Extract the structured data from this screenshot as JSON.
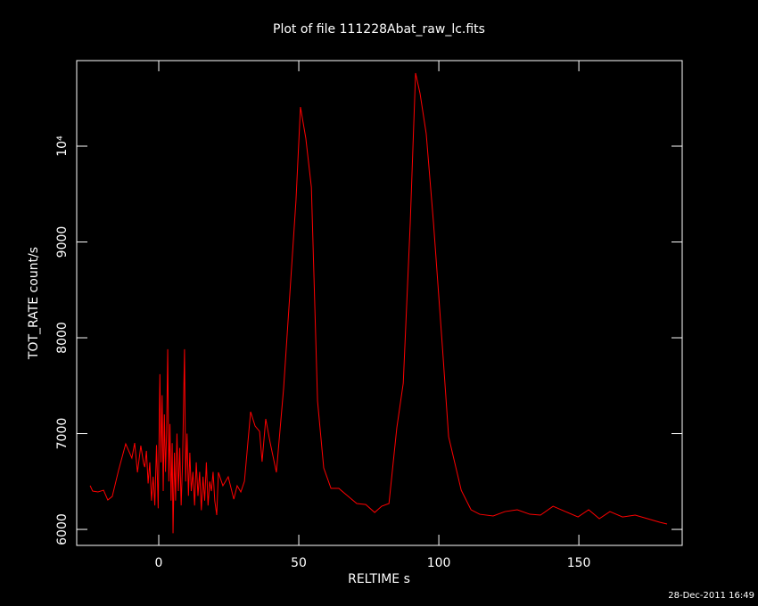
{
  "chart_data": {
    "type": "line",
    "title": "Plot of file 111228Abat_raw_lc.fits",
    "xlabel": "RELTIME  s",
    "ylabel": "TOT_RATE  count/s",
    "footer": "28-Dec-2011 16:49",
    "xlim": [
      -29.3,
      186.9
    ],
    "ylim": [
      5833,
      10893
    ],
    "xticks": [
      0,
      50,
      100,
      150
    ],
    "yticks": [
      6000,
      7000,
      8000,
      9000,
      {
        "value": 10000,
        "label": "10⁴"
      }
    ],
    "axis_color": "#ffffff",
    "series": [
      {
        "name": "TOT_RATE",
        "color": "#ff0000",
        "x": [
          -24.5,
          -23.6,
          -21.7,
          -19.7,
          -18.2,
          -16.6,
          -14.3,
          -11.8,
          -9.6,
          -8.6,
          -7.6,
          -6.4,
          -5.4,
          -5.0,
          -4.4,
          -3.8,
          -3.2,
          -2.6,
          -2.0,
          -1.4,
          -0.8,
          -0.2,
          0.4,
          0.8,
          1.2,
          1.6,
          2.0,
          2.4,
          2.8,
          3.2,
          3.6,
          4.0,
          4.4,
          4.8,
          5.1,
          5.6,
          6.0,
          6.5,
          7.0,
          7.5,
          8.0,
          8.5,
          9.2,
          9.6,
          10.1,
          10.6,
          11.1,
          11.6,
          12.2,
          12.8,
          13.4,
          14.0,
          14.6,
          15.2,
          15.8,
          16.4,
          17.0,
          17.6,
          18.2,
          18.8,
          19.4,
          20.0,
          20.7,
          21.3,
          22.9,
          24.8,
          26.8,
          28.0,
          29.3,
          30.6,
          32.8,
          34.4,
          36.0,
          36.9,
          38.2,
          39.8,
          42.0,
          44.6,
          46.8,
          49.0,
          50.6,
          52.5,
          54.5,
          56.7,
          58.9,
          61.5,
          64.3,
          66.9,
          70.7,
          73.9,
          77.1,
          79.6,
          82.2,
          85.0,
          87.3,
          89.8,
          91.7,
          93.3,
          95.5,
          98.1,
          101.3,
          103.5,
          108.0,
          111.5,
          114.6,
          119.4,
          123.6,
          128.0,
          132.5,
          136.3,
          140.8,
          145.2,
          149.7,
          153.5,
          157.3,
          161.1,
          165.6,
          170.1,
          174.5,
          179.0,
          181.5
        ],
        "values": [
          6456,
          6400,
          6391,
          6409,
          6307,
          6344,
          6623,
          6893,
          6744,
          6902,
          6595,
          6874,
          6688,
          6650,
          6820,
          6480,
          6700,
          6300,
          6550,
          6250,
          6880,
          6220,
          7620,
          6700,
          7400,
          6400,
          7200,
          6600,
          7000,
          7880,
          6500,
          7100,
          6300,
          6900,
          5960,
          6800,
          6300,
          7000,
          6400,
          6850,
          6250,
          6700,
          7880,
          6500,
          7000,
          6350,
          6800,
          6400,
          6600,
          6250,
          6700,
          6350,
          6600,
          6200,
          6550,
          6300,
          6700,
          6250,
          6500,
          6400,
          6600,
          6300,
          6150,
          6595,
          6456,
          6549,
          6316,
          6456,
          6391,
          6502,
          7228,
          7079,
          7023,
          6707,
          7153,
          6902,
          6595,
          7479,
          8456,
          9433,
          10409,
          10084,
          9572,
          7340,
          6642,
          6428,
          6428,
          6363,
          6270,
          6260,
          6177,
          6242,
          6270,
          7060,
          7526,
          9200,
          10763,
          10549,
          10130,
          9200,
          7898,
          6967,
          6409,
          6205,
          6158,
          6140,
          6186,
          6205,
          6158,
          6149,
          6242,
          6186,
          6130,
          6205,
          6112,
          6186,
          6130,
          6149,
          6112,
          6074,
          6056
        ]
      }
    ]
  }
}
